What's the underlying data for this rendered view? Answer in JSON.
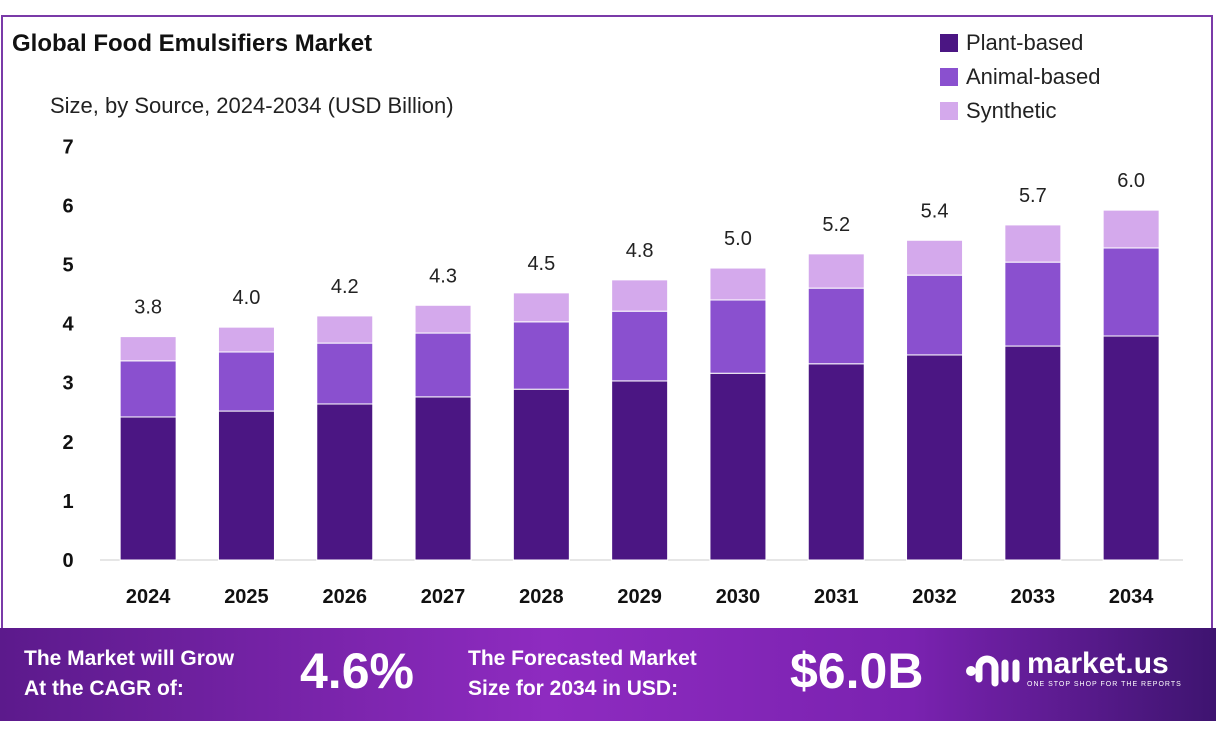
{
  "chart_data": {
    "type": "bar",
    "stacked": true,
    "title": "Global Food Emulsifiers Market",
    "subtitle": "Size, by Source, 2024-2034 (USD Billion)",
    "categories": [
      "2024",
      "2025",
      "2026",
      "2027",
      "2028",
      "2029",
      "2030",
      "2031",
      "2032",
      "2033",
      "2034"
    ],
    "series": [
      {
        "name": "Plant-based",
        "color": "#4b1683",
        "values": [
          2.42,
          2.52,
          2.64,
          2.76,
          2.89,
          3.03,
          3.16,
          3.32,
          3.47,
          3.62,
          3.79
        ]
      },
      {
        "name": "Animal-based",
        "color": "#8a50cf",
        "values": [
          0.95,
          1.0,
          1.03,
          1.08,
          1.14,
          1.18,
          1.24,
          1.28,
          1.35,
          1.42,
          1.49
        ]
      },
      {
        "name": "Synthetic",
        "color": "#d4a9ec",
        "values": [
          0.41,
          0.42,
          0.46,
          0.47,
          0.49,
          0.53,
          0.54,
          0.58,
          0.59,
          0.63,
          0.64
        ]
      }
    ],
    "totals_labels": [
      "3.8",
      "4.0",
      "4.2",
      "4.3",
      "4.5",
      "4.8",
      "5.0",
      "5.2",
      "5.4",
      "5.7",
      "6.0"
    ],
    "ylim": [
      0,
      7
    ],
    "yticks": [
      "0",
      "1",
      "2",
      "3",
      "4",
      "5",
      "6",
      "7"
    ],
    "grid": false,
    "legend": "top-right"
  },
  "footer": {
    "cagr_text1": "The Market will Grow",
    "cagr_text2": "At the CAGR of:",
    "cagr": "4.6%",
    "fc_text1": "The Forecasted Market",
    "fc_text2": "Size for 2034 in USD:",
    "forecast": "$6.0B",
    "brand": "market.us",
    "tagline": "ONE STOP SHOP FOR THE REPORTS"
  }
}
